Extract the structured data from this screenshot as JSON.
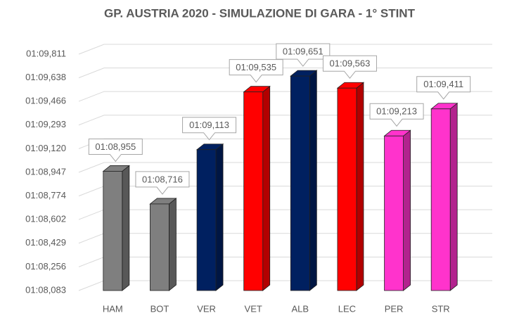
{
  "chart_data": {
    "type": "bar3d",
    "title": "GP. AUSTRIA 2020 - SIMULAZIONE DI GARA - 1° STINT",
    "categories": [
      "HAM",
      "BOT",
      "VER",
      "VET",
      "ALB",
      "LEC",
      "PER",
      "STR"
    ],
    "values": [
      68.955,
      68.716,
      69.113,
      69.535,
      69.651,
      69.563,
      69.213,
      69.411
    ],
    "value_labels": [
      "01:08,955",
      "01:08,716",
      "01:09,113",
      "01:09,535",
      "01:09,651",
      "01:09,563",
      "01:09,213",
      "01:09,411"
    ],
    "colors": [
      "#7f7f7f",
      "#7f7f7f",
      "#002060",
      "#ff0000",
      "#002060",
      "#ff0000",
      "#ff33cc",
      "#ff33cc"
    ],
    "ylim": [
      68.083,
      69.811
    ],
    "yticks": [
      {
        "value": 68.083,
        "label": "01:08,083"
      },
      {
        "value": 68.256,
        "label": "01:08,256"
      },
      {
        "value": 68.429,
        "label": "01:08,429"
      },
      {
        "value": 68.602,
        "label": "01:08,602"
      },
      {
        "value": 68.774,
        "label": "01:08,774"
      },
      {
        "value": 68.947,
        "label": "01:08,947"
      },
      {
        "value": 69.12,
        "label": "01:09,120"
      },
      {
        "value": 69.293,
        "label": "01:09,293"
      },
      {
        "value": 69.466,
        "label": "01:09,466"
      },
      {
        "value": 69.638,
        "label": "01:09,638"
      },
      {
        "value": 69.811,
        "label": "01:09,811"
      }
    ],
    "grid": true
  }
}
